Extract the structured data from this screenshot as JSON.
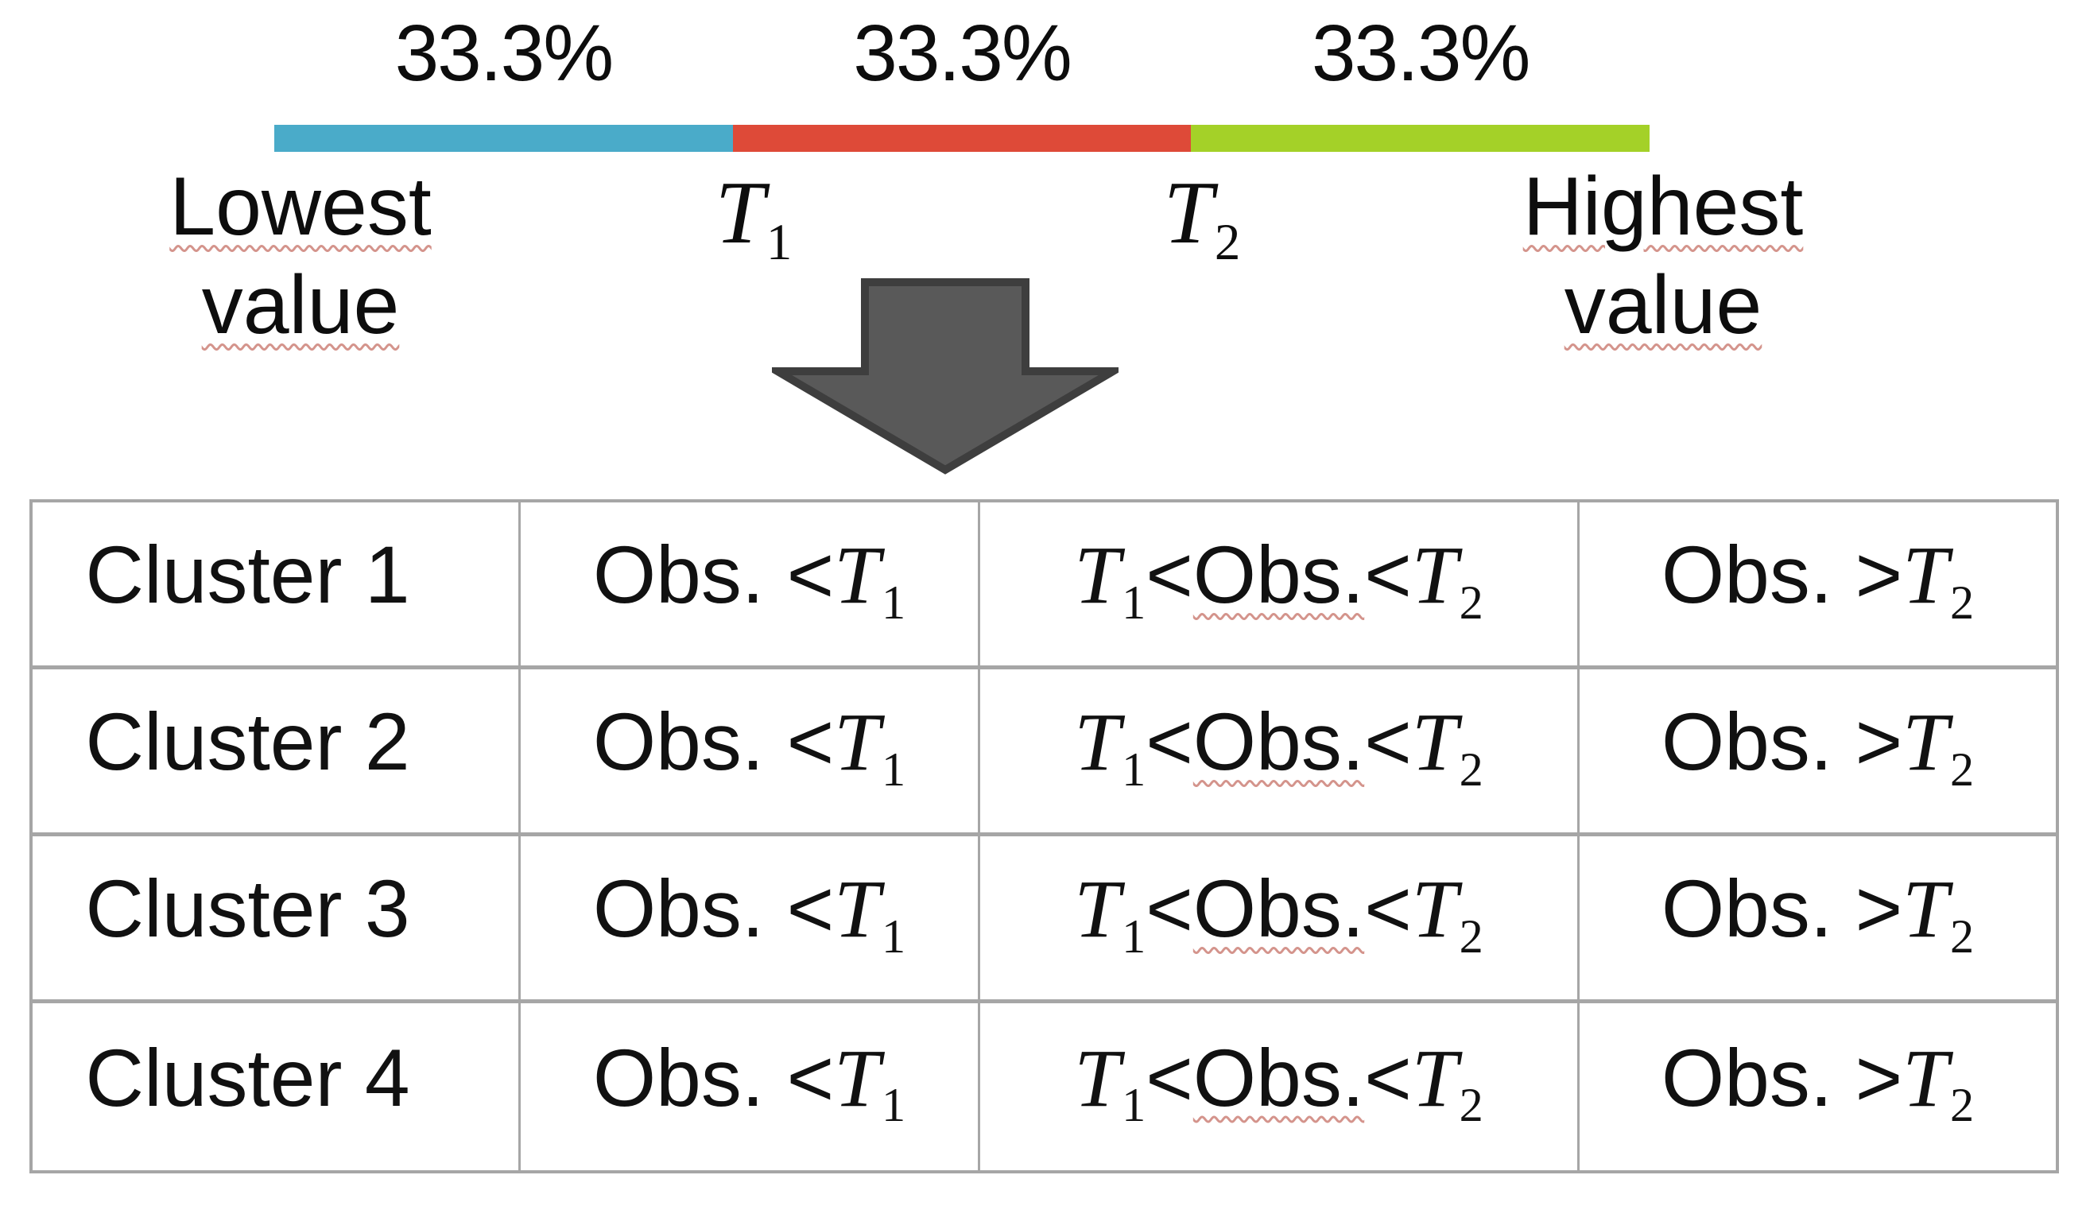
{
  "colors": {
    "tertile_blue": "#4AABC9",
    "tertile_red": "#DE4A38",
    "tertile_green": "#A4D128",
    "arrow_fill": "#595959",
    "arrow_stroke": "#3E3E3E",
    "table_border": "#A6A6A6",
    "squiggle": "#D4948C"
  },
  "tertile_bar": {
    "percent_labels": [
      "33.3%",
      "33.3%",
      "33.3%"
    ],
    "segments": [
      {
        "name": "lower-tertile",
        "share": "33.3%",
        "color": "#4AABC9"
      },
      {
        "name": "middle-tertile",
        "share": "33.3%",
        "color": "#DE4A38"
      },
      {
        "name": "upper-tertile",
        "share": "33.3%",
        "color": "#A4D128"
      }
    ],
    "min_label": {
      "line1": "Lowest",
      "line2": "value"
    },
    "max_label": {
      "line1": "Highest",
      "line2": "value"
    },
    "threshold1": {
      "base": "T",
      "sub": "1"
    },
    "threshold2": {
      "base": "T",
      "sub": "2"
    }
  },
  "table": {
    "rows": [
      {
        "cluster": "Cluster 1",
        "col_low": "Obs. < T₁",
        "col_mid": "T₁< Obs. < T₂",
        "col_high": "Obs. > T₂"
      },
      {
        "cluster": "Cluster 2",
        "col_low": "Obs. < T₁",
        "col_mid": "T₁< Obs. < T₂",
        "col_high": "Obs. > T₂"
      },
      {
        "cluster": "Cluster 3",
        "col_low": "Obs. < T₁",
        "col_mid": "T₁< Obs. < T₂",
        "col_high": "Obs. > T₂"
      },
      {
        "cluster": "Cluster 4",
        "col_low": "Obs. < T₁",
        "col_mid": "T₁< Obs. < T₂",
        "col_high": "Obs. > T₂"
      }
    ]
  }
}
